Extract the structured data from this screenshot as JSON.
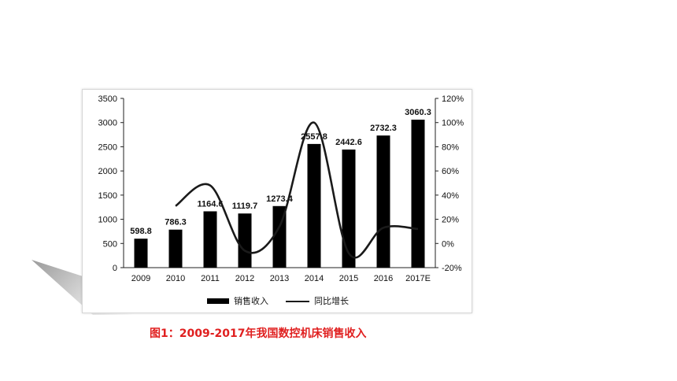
{
  "caption": "图1：2009-2017年我国数控机床销售收入",
  "colors": {
    "bar": "#000000",
    "line": "#1a1a1a",
    "caption": "#e02020"
  },
  "chart_data": {
    "type": "bar",
    "categories": [
      "2009",
      "2010",
      "2011",
      "2012",
      "2013",
      "2014",
      "2015",
      "2016",
      "2017E"
    ],
    "series": [
      {
        "name": "销售收入",
        "type": "bar",
        "axis": "left",
        "values": [
          598.8,
          786.3,
          1164.6,
          1119.7,
          1273.4,
          2557.8,
          2442.6,
          2732.3,
          3060.3
        ],
        "labels": [
          "598.8",
          "786.3",
          "1164.6",
          "1119.7",
          "1273.4",
          "2557.8",
          "2442.6",
          "2732.3",
          "3060.3"
        ]
      },
      {
        "name": "同比增长",
        "type": "line",
        "axis": "right",
        "values": [
          null,
          31,
          48,
          -6,
          14,
          100,
          -8,
          13,
          12
        ]
      }
    ],
    "y_left": {
      "min": 0,
      "max": 3500,
      "ticks": [
        "0",
        "500",
        "1000",
        "1500",
        "2000",
        "2500",
        "3000",
        "3500"
      ]
    },
    "y_right": {
      "min": -20,
      "max": 120,
      "ticks": [
        "-20%",
        "0%",
        "20%",
        "40%",
        "60%",
        "80%",
        "100%",
        "120%"
      ]
    },
    "legend_position": "bottom"
  }
}
